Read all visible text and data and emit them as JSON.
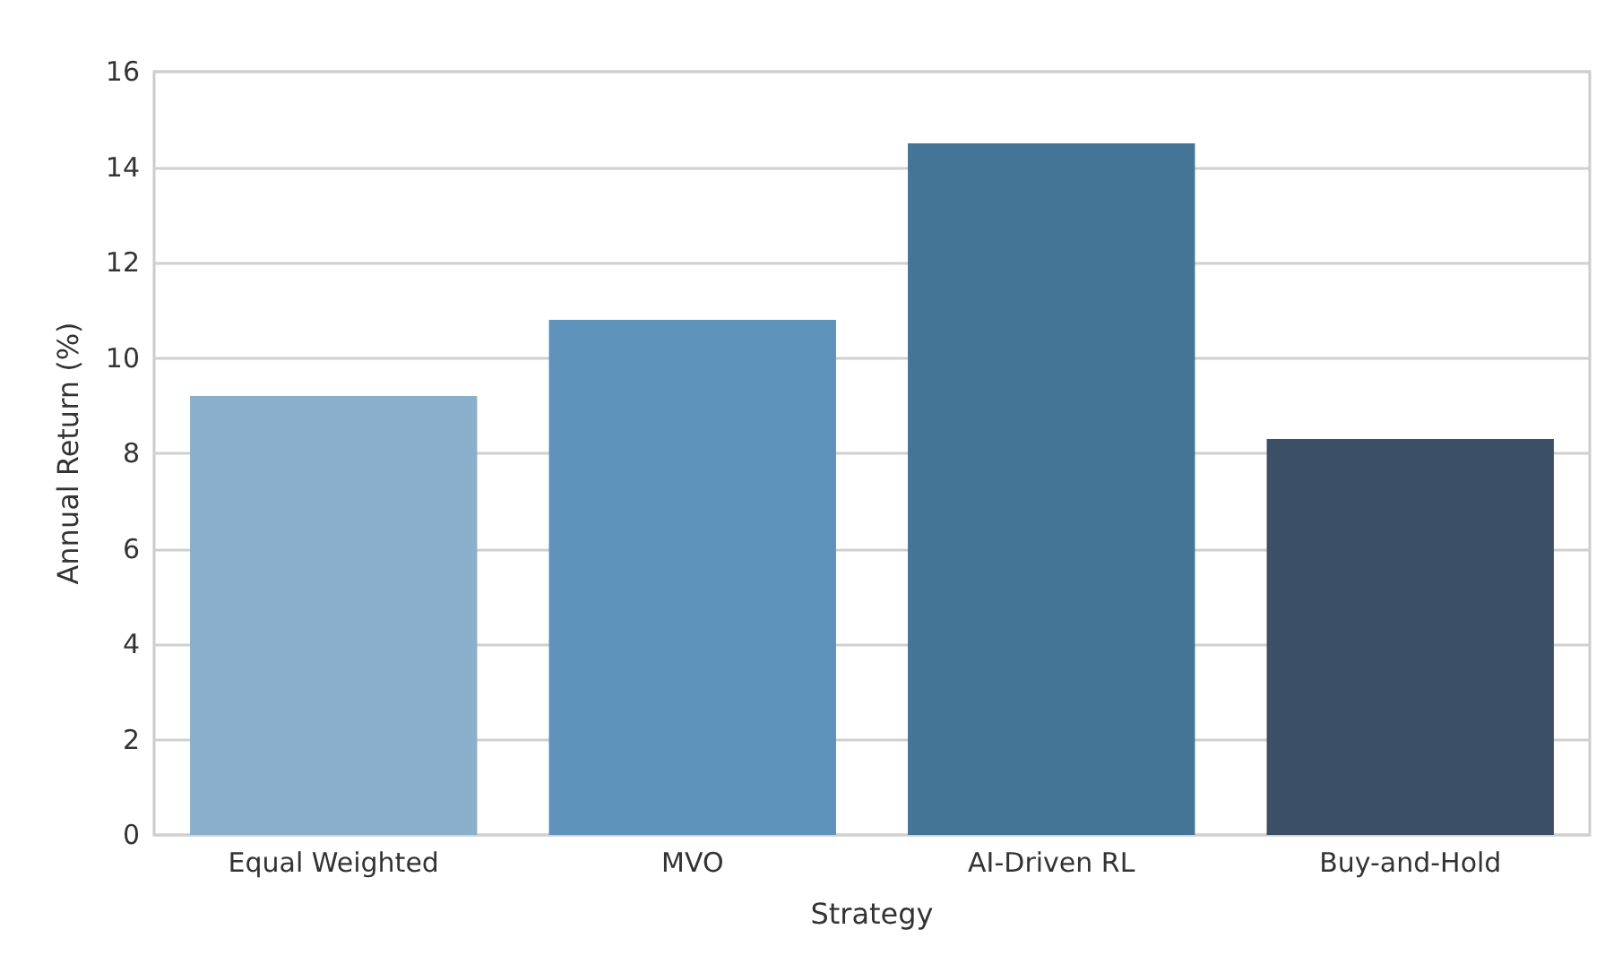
{
  "chart_data": {
    "type": "bar",
    "xlabel": "Strategy",
    "ylabel": "Annual Return (%)",
    "categories": [
      "Equal Weighted",
      "MVO",
      "AI-Driven RL",
      "Buy-and-Hold"
    ],
    "values": [
      9.2,
      10.8,
      14.5,
      8.3
    ],
    "colors": [
      "#89afcb",
      "#5d93ba",
      "#447597",
      "#3b5067"
    ],
    "ylim": [
      0,
      16
    ],
    "yticks": [
      0,
      2,
      4,
      6,
      8,
      10,
      12,
      14,
      16
    ],
    "grid": "y"
  }
}
